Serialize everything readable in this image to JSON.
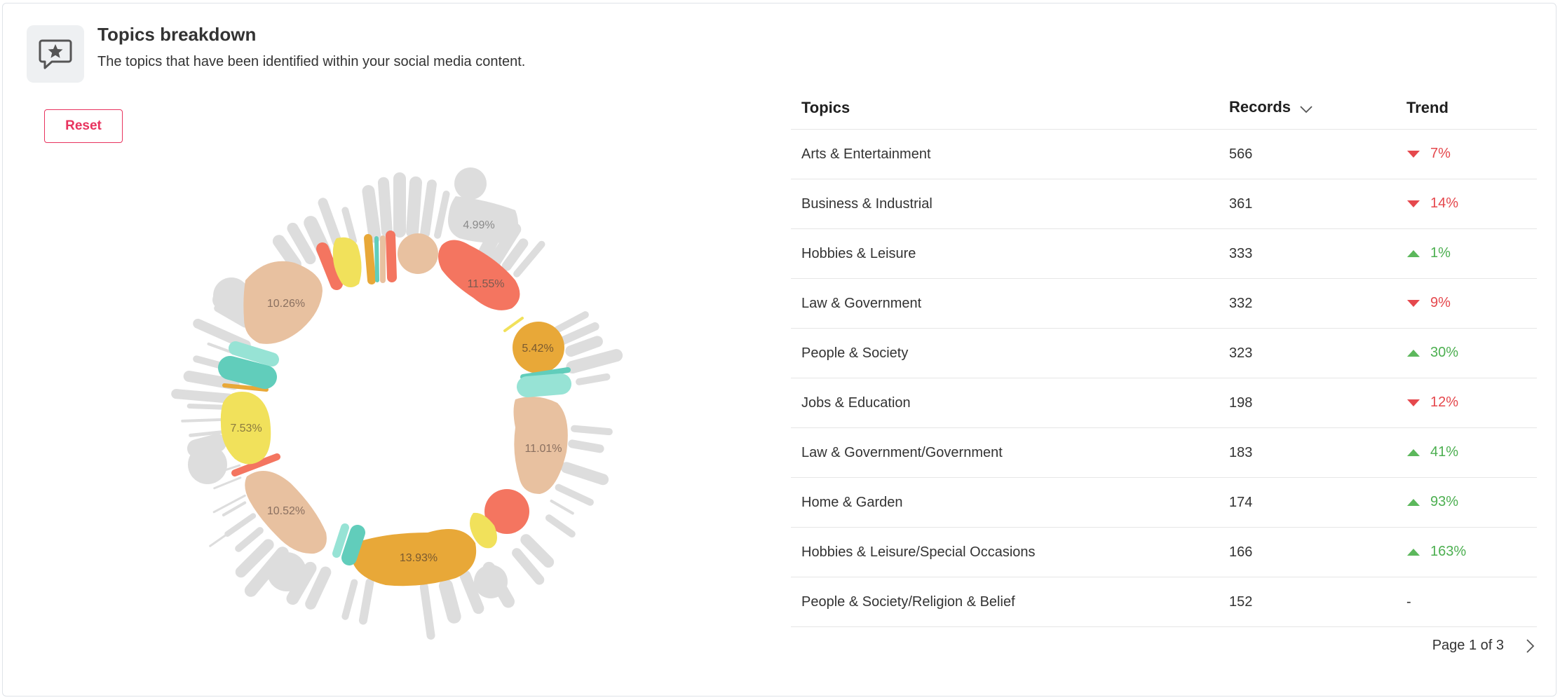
{
  "header": {
    "title": "Topics breakdown",
    "subtitle": "The topics that have been identified within your social media content.",
    "icon": "chat-star-icon"
  },
  "reset_label": "Reset",
  "chart_data": {
    "type": "pie",
    "slices": [
      {
        "label": "4.99%",
        "value": 4.99
      },
      {
        "label": "11.55%",
        "value": 11.55
      },
      {
        "label": "5.42%",
        "value": 5.42
      },
      {
        "label": "11.01%",
        "value": 11.01
      },
      {
        "label": "13.93%",
        "value": 13.93
      },
      {
        "label": "10.52%",
        "value": 10.52
      },
      {
        "label": "7.53%",
        "value": 7.53
      },
      {
        "label": "10.26%",
        "value": 10.26
      }
    ],
    "colors": [
      "#f47560",
      "#e8c1a0",
      "#f1e15b",
      "#e8a838",
      "#61cdbb",
      "#97e3d5",
      "#dddddd"
    ]
  },
  "table": {
    "columns": {
      "topics": "Topics",
      "records": "Records",
      "trend": "Trend"
    },
    "rows": [
      {
        "topic": "Arts & Entertainment",
        "records": "566",
        "trend": "7%",
        "dir": "down"
      },
      {
        "topic": "Business & Industrial",
        "records": "361",
        "trend": "14%",
        "dir": "down"
      },
      {
        "topic": "Hobbies & Leisure",
        "records": "333",
        "trend": "1%",
        "dir": "up"
      },
      {
        "topic": "Law & Government",
        "records": "332",
        "trend": "9%",
        "dir": "down"
      },
      {
        "topic": "People & Society",
        "records": "323",
        "trend": "30%",
        "dir": "up"
      },
      {
        "topic": "Jobs & Education",
        "records": "198",
        "trend": "12%",
        "dir": "down"
      },
      {
        "topic": "Law & Government/Government",
        "records": "183",
        "trend": "41%",
        "dir": "up"
      },
      {
        "topic": "Home & Garden",
        "records": "174",
        "trend": "93%",
        "dir": "up"
      },
      {
        "topic": "Hobbies & Leisure/Special Occasions",
        "records": "166",
        "trend": "163%",
        "dir": "up"
      },
      {
        "topic": "People & Society/Religion & Belief",
        "records": "152",
        "trend": "-",
        "dir": "none"
      }
    ]
  },
  "pagination": {
    "label": "Page 1 of 3"
  }
}
